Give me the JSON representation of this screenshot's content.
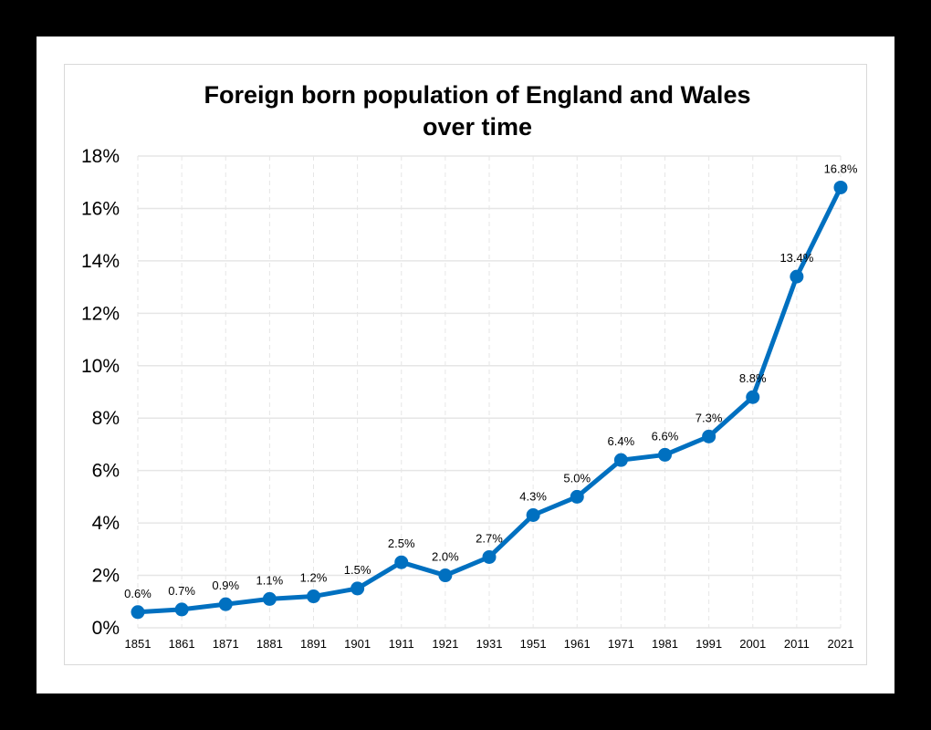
{
  "colors": {
    "frame": "#000000",
    "background": "#ffffff",
    "line": "#0070C0",
    "grid": "#e6e6e6"
  },
  "chart_data": {
    "type": "line",
    "title_lines": [
      "Foreign born population of England and Wales",
      "over time"
    ],
    "xlabel": "",
    "ylabel": "",
    "x": [
      "1851",
      "1861",
      "1871",
      "1881",
      "1891",
      "1901",
      "1911",
      "1921",
      "1931",
      "1951",
      "1961",
      "1971",
      "1981",
      "1991",
      "2001",
      "2011",
      "2021"
    ],
    "series": [
      {
        "values": [
          0.6,
          0.7,
          0.9,
          1.1,
          1.2,
          1.5,
          2.5,
          2.0,
          2.7,
          4.3,
          5.0,
          6.4,
          6.6,
          7.3,
          8.8,
          13.4,
          16.8
        ],
        "data_labels": [
          "0.6%",
          "0.7%",
          "0.9%",
          "1.1%",
          "1.2%",
          "1.5%",
          "2.5%",
          "2.0%",
          "2.7%",
          "4.3%",
          "5.0%",
          "6.4%",
          "6.6%",
          "7.3%",
          "8.8%",
          "13.4%",
          "16.8%"
        ]
      }
    ],
    "y_ticks": [
      0,
      2,
      4,
      6,
      8,
      10,
      12,
      14,
      16,
      18
    ],
    "y_tick_labels": [
      "0%",
      "2%",
      "4%",
      "6%",
      "8%",
      "10%",
      "12%",
      "14%",
      "16%",
      "18%"
    ],
    "ylim": [
      0,
      18
    ],
    "grid": true,
    "legend": "none"
  }
}
